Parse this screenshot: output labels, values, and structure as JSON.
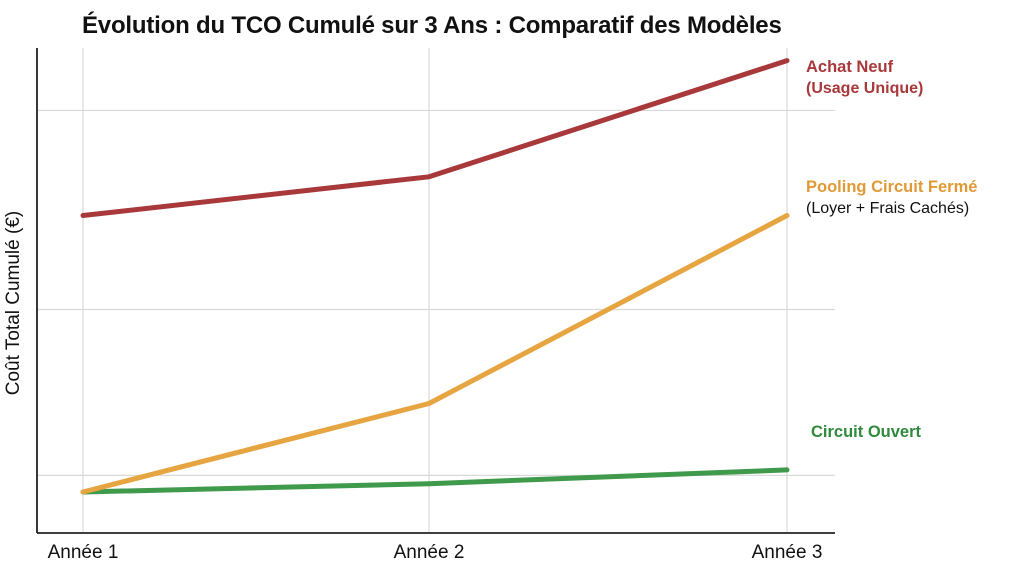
{
  "chart_data": {
    "type": "line",
    "title": "Évolution du TCO Cumulé sur 3 Ans : Comparatif des Modèles",
    "xlabel": "",
    "ylabel": "Coût Total Cumulé (€)",
    "categories": [
      "Année 1",
      "Année 2",
      "Année 3"
    ],
    "ylim": [
      0,
      100
    ],
    "grid": true,
    "legend": "inline-right",
    "series": [
      {
        "name": "Achat Neuf",
        "name_line2": "(Usage Unique)",
        "values": [
          67,
          74,
          95
        ],
        "color": "#a8383a",
        "label_color": "#a8383a",
        "sub_color": "#a8383a"
      },
      {
        "name": "Pooling Circuit Fermé",
        "name_line2": "(Loyer + Frais Cachés)",
        "values": [
          17,
          33,
          67
        ],
        "color": "#e6a540",
        "label_color": "#e09a35",
        "sub_color": "#111111"
      },
      {
        "name": "Circuit Ouvert",
        "values": [
          17,
          18.5,
          21
        ],
        "color": "#3f9a4c",
        "label_color": "#2f8a3c",
        "sub_color": "#2f8a3c"
      }
    ]
  }
}
